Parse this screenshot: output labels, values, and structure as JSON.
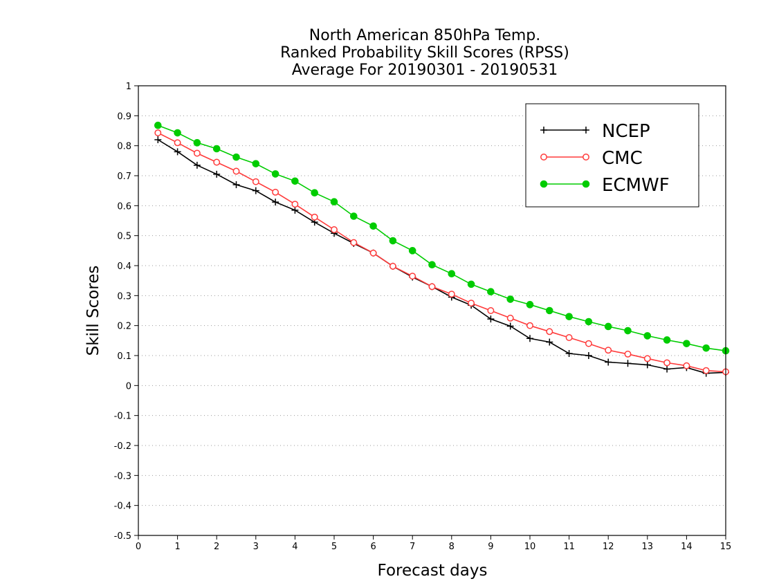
{
  "chart_data": {
    "type": "line",
    "title_lines": [
      "North American 850hPa Temp.",
      "Ranked Probability Skill Scores (RPSS)",
      "Average For 20190301 - 20190531"
    ],
    "xlabel": "Forecast days",
    "ylabel": "Skill Scores",
    "xlim": [
      0,
      15
    ],
    "ylim": [
      -0.5,
      1
    ],
    "xticks": [
      0,
      1,
      2,
      3,
      4,
      5,
      6,
      7,
      8,
      9,
      10,
      11,
      12,
      13,
      14,
      15
    ],
    "yticks": [
      -0.5,
      -0.4,
      -0.3,
      -0.2,
      -0.1,
      0,
      0.1,
      0.2,
      0.3,
      0.4,
      0.5,
      0.6,
      0.7,
      0.8,
      0.9,
      1
    ],
    "ytick_labels": [
      "-0.5",
      "-0.4",
      "-0.3",
      "-0.2",
      "-0.1",
      "0",
      "0.1",
      "0.2",
      "0.3",
      "0.4",
      "0.5",
      "0.6",
      "0.7",
      "0.8",
      "0.9",
      "1"
    ],
    "grid": "horizontal dotted",
    "legend_position": "top-right",
    "x": [
      0.5,
      1,
      1.5,
      2,
      2.5,
      3,
      3.5,
      4,
      4.5,
      5,
      5.5,
      6,
      6.5,
      7,
      7.5,
      8,
      8.5,
      9,
      9.5,
      10,
      10.5,
      11,
      11.5,
      12,
      12.5,
      13,
      13.5,
      14,
      14.5,
      15
    ],
    "series": [
      {
        "name": "NCEP",
        "color": "#000000",
        "marker": "plus",
        "values": [
          0.82,
          0.78,
          0.735,
          0.705,
          0.67,
          0.65,
          0.612,
          0.585,
          0.545,
          0.508,
          0.474,
          0.442,
          0.398,
          0.362,
          0.33,
          0.295,
          0.268,
          0.222,
          0.198,
          0.157,
          0.145,
          0.107,
          0.1,
          0.078,
          0.074,
          0.069,
          0.055,
          0.06,
          0.041,
          0.044
        ]
      },
      {
        "name": "CMC",
        "color": "#ff3a3a",
        "marker": "open-circle",
        "values": [
          0.843,
          0.81,
          0.775,
          0.745,
          0.715,
          0.68,
          0.645,
          0.605,
          0.562,
          0.52,
          0.477,
          0.442,
          0.398,
          0.365,
          0.33,
          0.305,
          0.275,
          0.25,
          0.225,
          0.2,
          0.18,
          0.16,
          0.14,
          0.118,
          0.105,
          0.09,
          0.076,
          0.066,
          0.05,
          0.046
        ]
      },
      {
        "name": "ECMWF",
        "color": "#00cc00",
        "marker": "filled-circle",
        "values": [
          0.868,
          0.843,
          0.81,
          0.79,
          0.762,
          0.74,
          0.706,
          0.682,
          0.643,
          0.613,
          0.565,
          0.532,
          0.483,
          0.45,
          0.403,
          0.373,
          0.338,
          0.313,
          0.288,
          0.27,
          0.25,
          0.23,
          0.213,
          0.197,
          0.183,
          0.166,
          0.152,
          0.14,
          0.125,
          0.116
        ]
      }
    ]
  }
}
